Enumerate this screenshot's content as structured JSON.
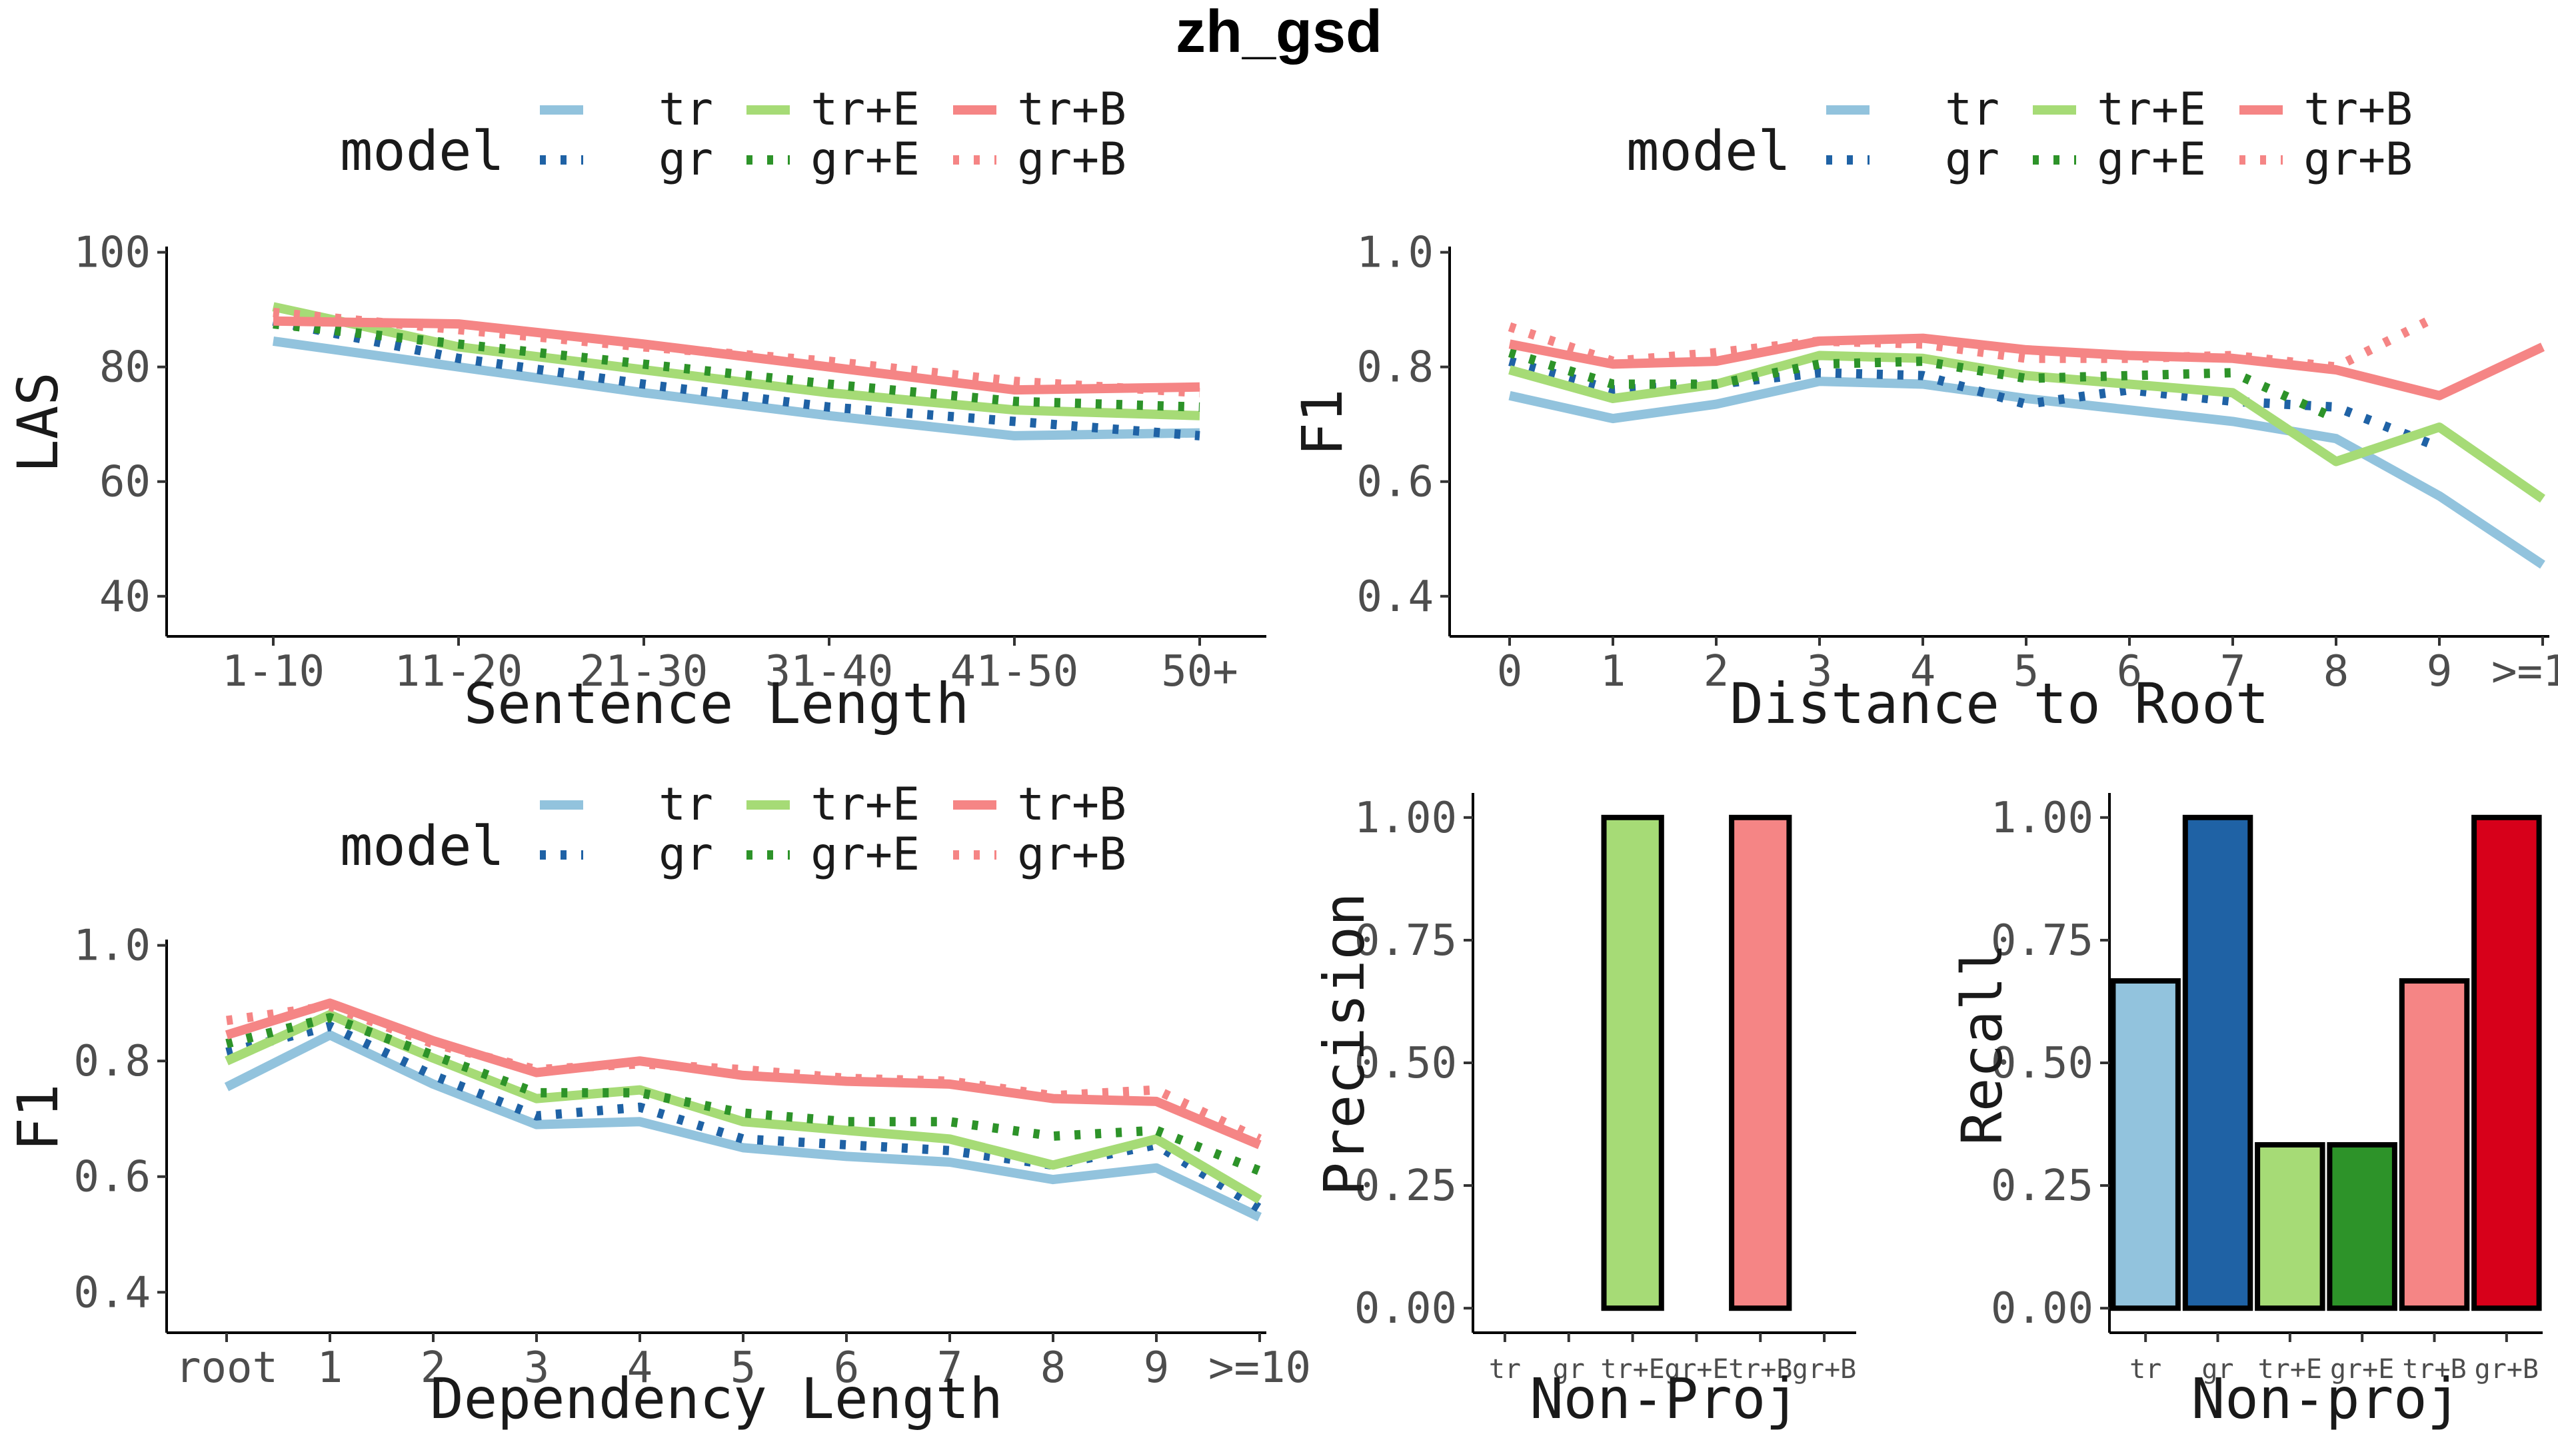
{
  "figure_title": "zh_gsd",
  "legend": {
    "title": "model",
    "entries": [
      {
        "label": "tr",
        "color": "#92C3DD",
        "dash": "solid"
      },
      {
        "label": "gr",
        "color": "#1F62A5",
        "dash": "dotted"
      },
      {
        "label": "tr+E",
        "color": "#A6DB76",
        "dash": "solid"
      },
      {
        "label": "gr+E",
        "color": "#2D9329",
        "dash": "dotted"
      },
      {
        "label": "tr+B",
        "color": "#F58585",
        "dash": "solid"
      },
      {
        "label": "gr+B",
        "color": "#F58585",
        "dash": "dotted"
      }
    ]
  },
  "chart_data": [
    {
      "id": "sentence-length",
      "type": "line",
      "title": "",
      "xlabel": "Sentence Length",
      "ylabel": "LAS",
      "categories": [
        "1-10",
        "11-20",
        "21-30",
        "31-40",
        "41-50",
        "50+"
      ],
      "ylim": [
        33,
        101
      ],
      "yticks": [
        "40",
        "60",
        "80",
        "100"
      ],
      "ytick_values": [
        40,
        60,
        80,
        100
      ],
      "series": [
        {
          "name": "tr",
          "values": [
            84.5,
            80,
            75.5,
            71.5,
            68,
            68.5
          ]
        },
        {
          "name": "gr",
          "values": [
            88,
            81.5,
            77,
            73,
            70.5,
            68
          ]
        },
        {
          "name": "tr+E",
          "values": [
            90.5,
            83.5,
            79.5,
            75.5,
            72.5,
            71.5
          ]
        },
        {
          "name": "gr+E",
          "values": [
            87.5,
            84,
            80.5,
            77,
            74,
            73
          ]
        },
        {
          "name": "tr+B",
          "values": [
            88,
            87.5,
            84,
            80,
            76,
            76.5
          ]
        },
        {
          "name": "gr+B",
          "values": [
            89.5,
            86.5,
            83.5,
            81,
            77.5,
            75.5
          ]
        }
      ]
    },
    {
      "id": "distance-to-root",
      "type": "line",
      "title": "",
      "xlabel": "Distance to Root",
      "ylabel": "F1",
      "categories": [
        "0",
        "1",
        "2",
        "3",
        "4",
        "5",
        "6",
        "7",
        "8",
        "9",
        ">=10"
      ],
      "ylim": [
        0.33,
        1.01
      ],
      "yticks": [
        "0.4",
        "0.6",
        "0.8",
        "1.0"
      ],
      "ytick_values": [
        0.4,
        0.6,
        0.8,
        1.0
      ],
      "series": [
        {
          "name": "tr",
          "values": [
            0.75,
            0.71,
            0.735,
            0.775,
            0.77,
            0.745,
            0.725,
            0.705,
            0.675,
            0.575,
            0.455
          ]
        },
        {
          "name": "gr",
          "values": [
            0.81,
            0.76,
            0.77,
            0.79,
            0.785,
            0.735,
            0.76,
            0.74,
            0.73,
            0.66,
            null
          ]
        },
        {
          "name": "tr+E",
          "values": [
            0.795,
            0.745,
            0.77,
            0.82,
            0.815,
            0.785,
            0.77,
            0.755,
            0.635,
            0.695,
            0.57
          ]
        },
        {
          "name": "gr+E",
          "values": [
            0.825,
            0.77,
            0.77,
            0.805,
            0.81,
            0.78,
            0.785,
            0.79,
            0.71,
            null,
            null
          ]
        },
        {
          "name": "tr+B",
          "values": [
            0.84,
            0.805,
            0.81,
            0.845,
            0.85,
            0.83,
            0.82,
            0.815,
            0.795,
            0.75,
            0.835
          ]
        },
        {
          "name": "gr+B",
          "values": [
            0.87,
            0.81,
            0.825,
            0.845,
            0.84,
            0.815,
            0.815,
            0.82,
            0.8,
            0.89,
            null
          ]
        }
      ]
    },
    {
      "id": "dependency-length",
      "type": "line",
      "title": "",
      "xlabel": "Dependency Length",
      "ylabel": "F1",
      "categories": [
        "root",
        "1",
        "2",
        "3",
        "4",
        "5",
        "6",
        "7",
        "8",
        "9",
        ">=10"
      ],
      "ylim": [
        0.33,
        1.01
      ],
      "yticks": [
        "0.4",
        "0.6",
        "0.8",
        "1.0"
      ],
      "ytick_values": [
        0.4,
        0.6,
        0.8,
        1.0
      ],
      "series": [
        {
          "name": "tr",
          "values": [
            0.755,
            0.845,
            0.76,
            0.69,
            0.695,
            0.65,
            0.635,
            0.625,
            0.595,
            0.615,
            0.53
          ]
        },
        {
          "name": "gr",
          "values": [
            0.815,
            0.86,
            0.775,
            0.705,
            0.72,
            0.665,
            0.655,
            0.645,
            0.62,
            0.655,
            0.545
          ]
        },
        {
          "name": "tr+E",
          "values": [
            0.8,
            0.88,
            0.805,
            0.735,
            0.75,
            0.695,
            0.68,
            0.665,
            0.62,
            0.665,
            0.56
          ]
        },
        {
          "name": "gr+E",
          "values": [
            0.83,
            0.875,
            0.81,
            0.745,
            0.745,
            0.71,
            0.695,
            0.695,
            0.67,
            0.68,
            0.61
          ]
        },
        {
          "name": "tr+B",
          "values": [
            0.845,
            0.9,
            0.835,
            0.78,
            0.8,
            0.775,
            0.765,
            0.76,
            0.735,
            0.73,
            0.655
          ]
        },
        {
          "name": "gr+B",
          "values": [
            0.87,
            0.895,
            0.83,
            0.785,
            0.795,
            0.785,
            0.77,
            0.765,
            0.74,
            0.75,
            0.665
          ]
        }
      ]
    },
    {
      "id": "non-proj-precision",
      "type": "bar",
      "title": "",
      "xlabel": "Non-Proj",
      "ylabel": "Precision",
      "categories": [
        "tr",
        "gr",
        "tr+E",
        "gr+E",
        "tr+B",
        "gr+B"
      ],
      "values": [
        null,
        null,
        1.0,
        null,
        1.0,
        null
      ],
      "colors": [
        "#92C3DD",
        "#1F62A5",
        "#A6DB76",
        "#2D9329",
        "#F58585",
        "#D7001A"
      ],
      "ylim": [
        -0.05,
        1.05
      ],
      "yticks": [
        "0.00",
        "0.25",
        "0.50",
        "0.75",
        "1.00"
      ],
      "ytick_values": [
        0,
        0.25,
        0.5,
        0.75,
        1.0
      ]
    },
    {
      "id": "non-proj-recall",
      "type": "bar",
      "title": "",
      "xlabel": "Non-proj",
      "ylabel": "Recall",
      "categories": [
        "tr",
        "gr",
        "tr+E",
        "gr+E",
        "tr+B",
        "gr+B"
      ],
      "values": [
        0.667,
        1.0,
        0.333,
        0.333,
        0.667,
        1.0
      ],
      "colors": [
        "#92C3DD",
        "#1F62A5",
        "#A6DB76",
        "#2D9329",
        "#F58585",
        "#D7001A"
      ],
      "ylim": [
        -0.05,
        1.05
      ],
      "yticks": [
        "0.00",
        "0.25",
        "0.50",
        "0.75",
        "1.00"
      ],
      "ytick_values": [
        0,
        0.25,
        0.5,
        0.75,
        1.0
      ]
    }
  ]
}
